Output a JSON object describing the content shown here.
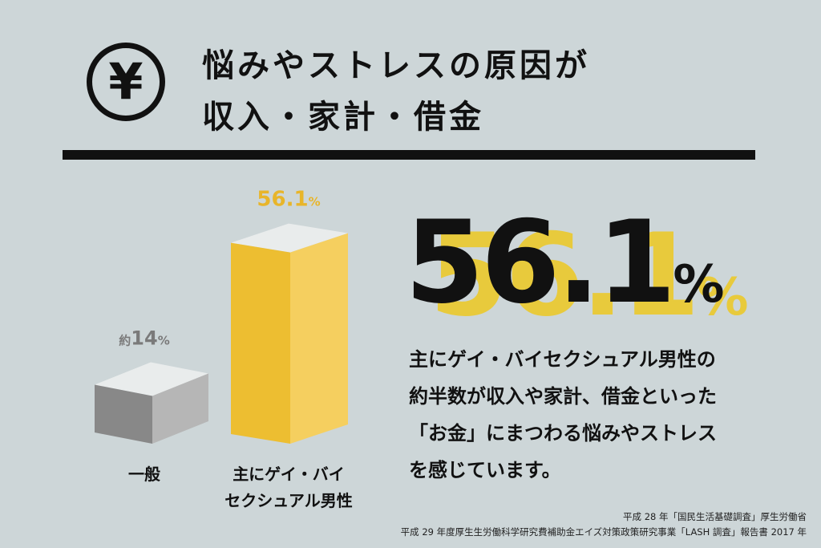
{
  "header": {
    "yen_symbol": "¥",
    "title_line1": "悩みやストレスの原因が",
    "title_line2": "収入・家計・借金"
  },
  "headline": {
    "value": "56.1",
    "unit": "%"
  },
  "description": [
    "主にゲイ・バイセクシュアル男性の",
    "約半数が収入や家計、借金といった",
    "「お金」にまつわる悩みやストレス",
    "を感じています。"
  ],
  "sources": [
    "平成 28 年「国民生活基礎調査」厚生労働省",
    "平成 29 年度厚生生労働科学研究費補助金エイズ対策政策研究事業「LASH 調査」報告書 2017 年"
  ],
  "colors": {
    "background": "#cdd6d8",
    "accent_yellow": "#e8ca3c",
    "gray_bar": "#9a9a9a",
    "text": "#111111"
  },
  "chart_data": {
    "type": "bar",
    "categories": [
      "一般",
      "主にゲイ・バイセクシュアル男性"
    ],
    "category_lines": [
      [
        "一般"
      ],
      [
        "主にゲイ・バイ",
        "セクシュアル男性"
      ]
    ],
    "values": [
      14,
      56.1
    ],
    "value_labels": [
      {
        "prefix": "約",
        "number": "14",
        "unit": "%"
      },
      {
        "prefix": "",
        "number": "56.1",
        "unit": "%"
      }
    ],
    "colors": [
      "#9a9a9a",
      "#f2c232"
    ],
    "ylim": [
      0,
      60
    ],
    "style": "3d-column"
  }
}
